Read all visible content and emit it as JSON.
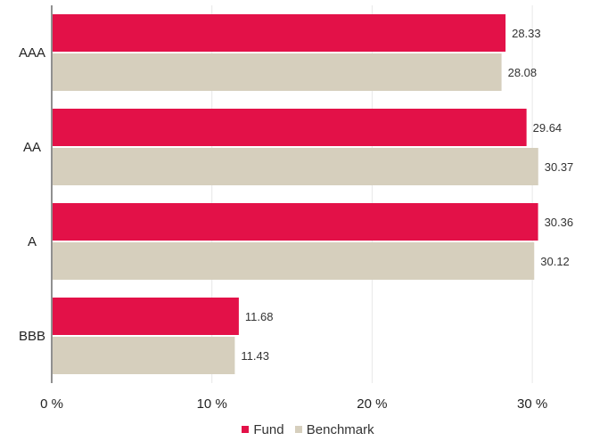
{
  "chart_data": {
    "type": "bar",
    "orientation": "horizontal",
    "categories": [
      "AAA",
      "AA",
      "A",
      "BBB"
    ],
    "series": [
      {
        "name": "Fund",
        "values": [
          28.33,
          29.64,
          30.36,
          11.68
        ],
        "color": "#e31148"
      },
      {
        "name": "Benchmark",
        "values": [
          28.08,
          30.37,
          30.12,
          11.43
        ],
        "color": "#d6cfbd"
      }
    ],
    "xlim": [
      0,
      33.5
    ],
    "xticks": [
      0,
      10,
      20,
      30
    ],
    "xtick_labels": [
      "0 %",
      "10 %",
      "20 %",
      "30 %"
    ],
    "grid": "vertical",
    "legend_position": "bottom-center"
  }
}
